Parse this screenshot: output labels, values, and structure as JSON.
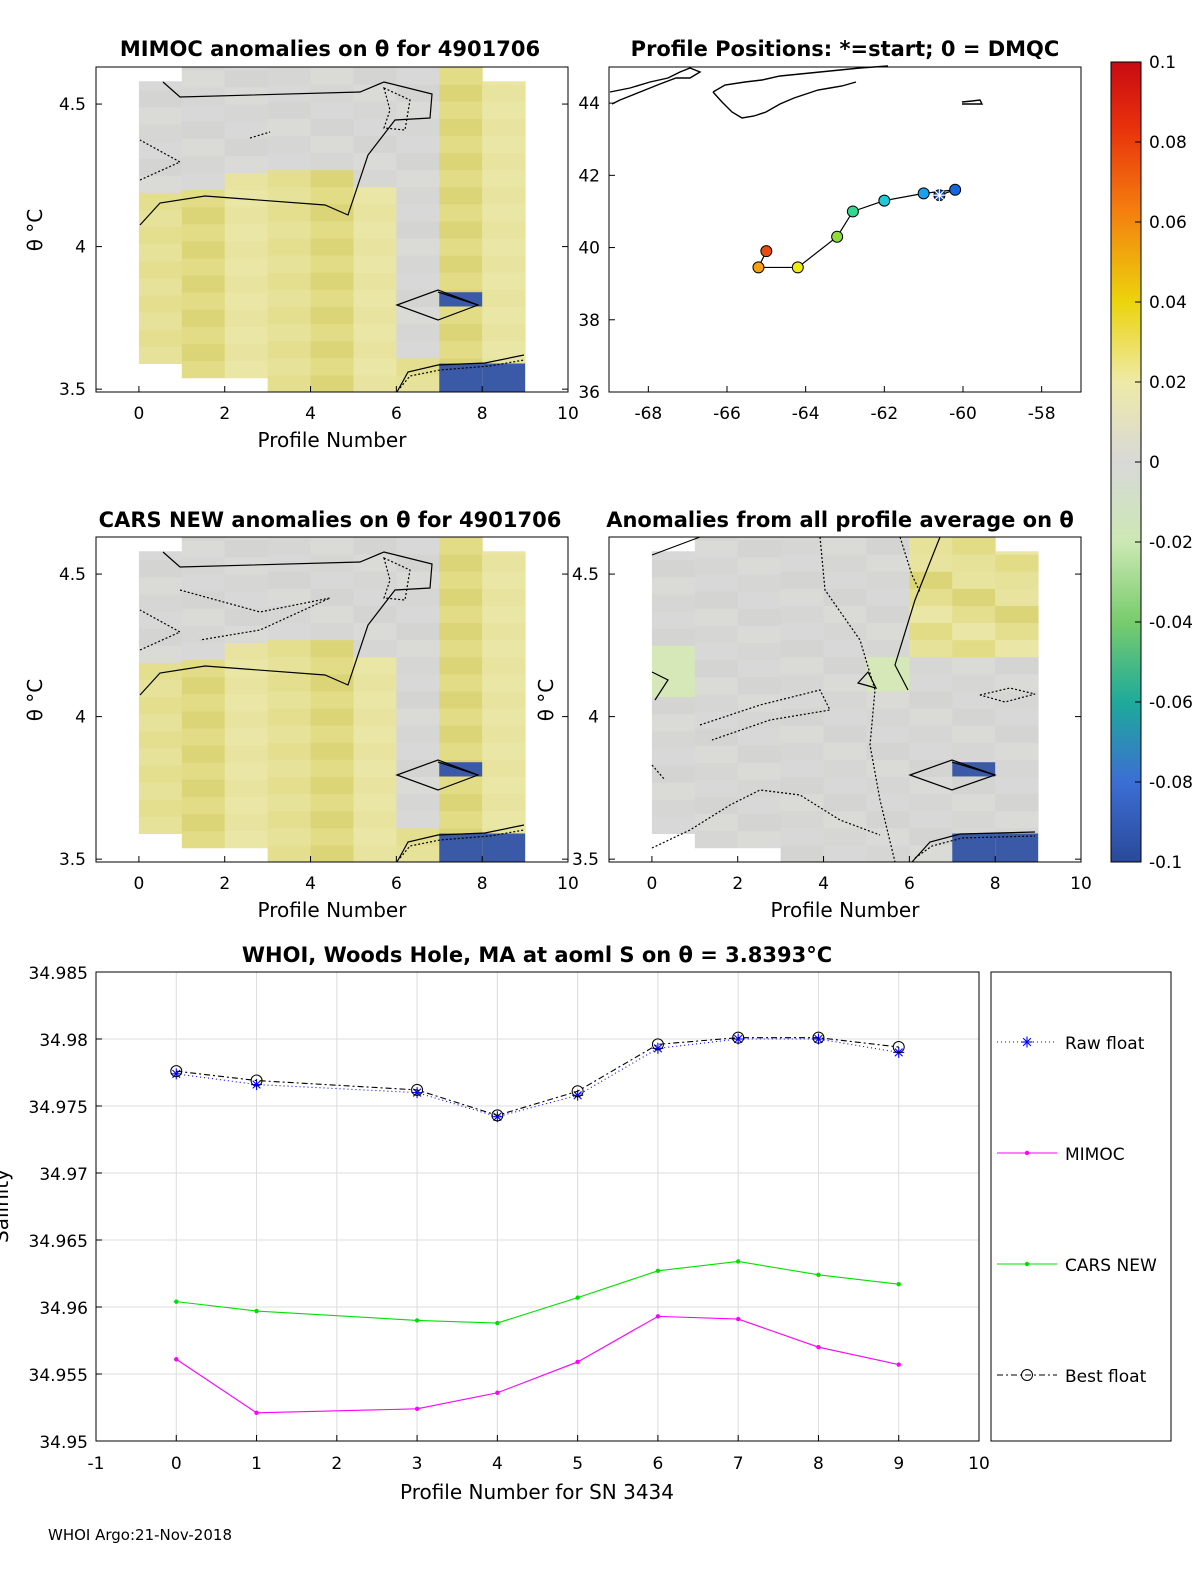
{
  "chart_data": [
    {
      "id": "mimoc",
      "type": "heatmap",
      "title": "MIMOC anomalies on θ  for 4901706",
      "xlabel": "Profile Number",
      "ylabel": "θ °C",
      "xlim": [
        -1,
        10
      ],
      "ylim": [
        3.49,
        4.63
      ],
      "xticks": [
        "0",
        "2",
        "4",
        "6",
        "8",
        "10"
      ],
      "yticks": [
        "3.5",
        "4",
        "4.5"
      ],
      "columns": [
        {
          "profile": 0,
          "theta_range": [
            3.59,
            4.58
          ],
          "pattern": "left"
        },
        {
          "profile": 1,
          "theta_range": [
            3.54,
            4.63
          ],
          "pattern": "left"
        },
        {
          "profile": 2,
          "theta_range": [
            3.54,
            4.63
          ],
          "pattern": "warm"
        },
        {
          "profile": 3,
          "theta_range": [
            3.49,
            4.63
          ],
          "pattern": "warm"
        },
        {
          "profile": 4,
          "theta_range": [
            3.49,
            4.63
          ],
          "pattern": "warm"
        },
        {
          "profile": 5,
          "theta_range": [
            3.49,
            4.63
          ],
          "pattern": "mid"
        },
        {
          "profile": 6,
          "theta_range": [
            3.49,
            4.63
          ],
          "pattern": "mid"
        },
        {
          "profile": 7,
          "theta_range": [
            3.49,
            4.63
          ],
          "pattern": "right"
        },
        {
          "profile": 8,
          "theta_range": [
            3.49,
            4.58
          ],
          "pattern": "right"
        }
      ],
      "cold_cells": [
        {
          "profile": 7,
          "theta_range": [
            3.79,
            3.84
          ]
        },
        {
          "profile": 7,
          "theta_range": [
            3.49,
            3.59
          ]
        },
        {
          "profile": 8,
          "theta_range": [
            3.49,
            3.59
          ]
        }
      ]
    },
    {
      "id": "cars",
      "type": "heatmap",
      "title": "CARS NEW anomalies on θ for 4901706",
      "xlabel": "Profile Number",
      "ylabel": "θ °C",
      "xlim": [
        -1,
        10
      ],
      "ylim": [
        3.49,
        4.63
      ],
      "xticks": [
        "0",
        "2",
        "4",
        "6",
        "8",
        "10"
      ],
      "yticks": [
        "3.5",
        "4",
        "4.5"
      ]
    },
    {
      "id": "allprof",
      "type": "heatmap",
      "title": "Anomalies from all profile average on θ",
      "xlabel": "Profile Number",
      "ylabel": "θ °C",
      "xlim": [
        -1,
        10
      ],
      "ylim": [
        3.49,
        4.63
      ],
      "xticks": [
        "0",
        "2",
        "4",
        "6",
        "8",
        "10"
      ],
      "yticks": [
        "3.5",
        "4",
        "4.5"
      ]
    },
    {
      "id": "positions",
      "type": "scatter",
      "title": "Profile Positions: *=start; 0 = DMQC",
      "xlim": [
        -69,
        -57
      ],
      "ylim": [
        36,
        45
      ],
      "xticks": [
        "-68",
        "-66",
        "-64",
        "-62",
        "-60",
        "-58"
      ],
      "yticks": [
        "36",
        "38",
        "40",
        "42",
        "44"
      ],
      "points": [
        {
          "profile": 0,
          "lon": -60.6,
          "lat": 41.45,
          "color": "#1448c8",
          "start": true
        },
        {
          "profile": 1,
          "lon": -60.2,
          "lat": 41.6,
          "color": "#1468dc"
        },
        {
          "profile": 2,
          "lon": -61.0,
          "lat": 41.5,
          "color": "#1aa0ec"
        },
        {
          "profile": 3,
          "lon": -62.0,
          "lat": 41.3,
          "color": "#22c8d8"
        },
        {
          "profile": 4,
          "lon": -62.8,
          "lat": 41.0,
          "color": "#30d890"
        },
        {
          "profile": 5,
          "lon": -63.2,
          "lat": 40.3,
          "color": "#90dc3c"
        },
        {
          "profile": 6,
          "lon": -64.2,
          "lat": 39.45,
          "color": "#f0ec10"
        },
        {
          "profile": 7,
          "lon": -65.2,
          "lat": 39.45,
          "color": "#f4a010"
        },
        {
          "profile": 8,
          "lon": -65.0,
          "lat": 39.9,
          "color": "#e84c10"
        }
      ]
    },
    {
      "id": "colorbar",
      "type": "colorbar",
      "range": [
        -0.1,
        0.1
      ],
      "ticks": [
        "0.1",
        "0.08",
        "0.06",
        "0.04",
        "0.02",
        "0",
        "-0.02",
        "-0.04",
        "-0.06",
        "-0.08",
        "-0.1"
      ]
    },
    {
      "id": "salinity",
      "type": "line",
      "title": "WHOI, Woods Hole, MA at aoml S on θ = 3.8393°C",
      "xlabel": "Profile Number for SN 3434",
      "ylabel": "Salinity",
      "xlim": [
        -1,
        10
      ],
      "ylim": [
        34.95,
        34.985
      ],
      "grid": true,
      "legend": "right",
      "xticks": [
        "-1",
        "0",
        "1",
        "2",
        "3",
        "4",
        "5",
        "6",
        "7",
        "8",
        "9",
        "10"
      ],
      "yticks": [
        "34.95",
        "34.955",
        "34.96",
        "34.965",
        "34.97",
        "34.975",
        "34.98",
        "34.985"
      ],
      "x": [
        0,
        1,
        3,
        4,
        5,
        6,
        7,
        8,
        9
      ],
      "series": [
        {
          "name": "Raw float",
          "color": "#0000ff",
          "marker": "star",
          "dash": "1,3",
          "values": [
            34.9774,
            34.9766,
            34.976,
            34.9742,
            34.9758,
            34.9793,
            34.98,
            34.98,
            34.979
          ]
        },
        {
          "name": "MIMOC",
          "color": "#ff00ff",
          "marker": "dot",
          "dash": "",
          "values": [
            34.9561,
            34.9521,
            34.9524,
            34.9536,
            34.9559,
            34.9593,
            34.9591,
            34.957,
            34.9557
          ]
        },
        {
          "name": "CARS NEW",
          "color": "#00e000",
          "marker": "dot",
          "dash": "",
          "values": [
            34.9604,
            34.9597,
            34.959,
            34.9588,
            34.9607,
            34.9627,
            34.9634,
            34.9624,
            34.9617
          ]
        },
        {
          "name": "Best float",
          "color": "#000000",
          "marker": "circle",
          "dash": "6,3,2,3",
          "values": [
            34.9776,
            34.9769,
            34.9762,
            34.9743,
            34.9761,
            34.9796,
            34.9801,
            34.9801,
            34.9794
          ]
        }
      ]
    }
  ],
  "footer": "WHOI Argo:21-Nov-2018"
}
